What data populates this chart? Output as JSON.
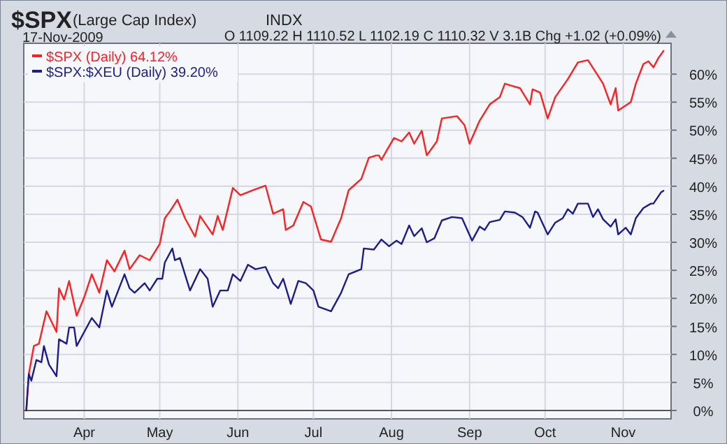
{
  "chart_data": {
    "type": "line",
    "title": "$SPX",
    "subtitle": "17-Nov-2009",
    "annotations": [
      "(Large Cap Index)",
      "INDX",
      "O 1109.22  H 1110.52  L 1102.19  C 1110.32  V 3.1B  Chg +1.02 (+0.09%)"
    ],
    "xlim": [
      "2009-03-08",
      "2009-11-20"
    ],
    "xticks": [
      {
        "value": "2009-04-01",
        "label": "Apr"
      },
      {
        "value": "2009-05-01",
        "label": "May"
      },
      {
        "value": "2009-06-01",
        "label": "Jun"
      },
      {
        "value": "2009-07-01",
        "label": "Jul"
      },
      {
        "value": "2009-08-01",
        "label": "Aug"
      },
      {
        "value": "2009-09-01",
        "label": "Sep"
      },
      {
        "value": "2009-10-01",
        "label": "Oct"
      },
      {
        "value": "2009-11-01",
        "label": "Nov"
      }
    ],
    "ylim": [
      -1.5,
      65.5
    ],
    "yticks": [
      {
        "value": 0,
        "label": "0%"
      },
      {
        "value": 5,
        "label": "5%"
      },
      {
        "value": 10,
        "label": "10%"
      },
      {
        "value": 15,
        "label": "15%"
      },
      {
        "value": 20,
        "label": "20%"
      },
      {
        "value": 25,
        "label": "25%"
      },
      {
        "value": 30,
        "label": "30%"
      },
      {
        "value": 35,
        "label": "35%"
      },
      {
        "value": 40,
        "label": "40%"
      },
      {
        "value": 45,
        "label": "45%"
      },
      {
        "value": 50,
        "label": "50%"
      },
      {
        "value": 55,
        "label": "55%"
      },
      {
        "value": 60,
        "label": "60%"
      }
    ],
    "grid": true,
    "legend": "top left",
    "marker": "none",
    "line_style": "solid",
    "ref_lines": [
      {
        "axis": "y",
        "value": 0,
        "color": "#55555f"
      }
    ],
    "series": [
      {
        "name": "$SPX (Daily) 64.12%",
        "color": "#ff2020",
        "x": [
          "2009-03-09",
          "2009-03-10",
          "2009-03-12",
          "2009-03-14",
          "2009-03-17",
          "2009-03-21",
          "2009-03-22",
          "2009-03-24",
          "2009-03-26",
          "2009-03-29",
          "2009-04-01",
          "2009-04-04",
          "2009-04-07",
          "2009-04-10",
          "2009-04-13",
          "2009-04-17",
          "2009-04-19",
          "2009-04-23",
          "2009-04-27",
          "2009-05-01",
          "2009-05-03",
          "2009-05-05",
          "2009-05-08",
          "2009-05-11",
          "2009-05-15",
          "2009-05-17",
          "2009-05-22",
          "2009-05-24",
          "2009-05-26",
          "2009-05-30",
          "2009-06-02",
          "2009-06-07",
          "2009-06-12",
          "2009-06-15",
          "2009-06-19",
          "2009-06-20",
          "2009-06-23",
          "2009-06-27",
          "2009-06-30",
          "2009-07-04",
          "2009-07-08",
          "2009-07-12",
          "2009-07-15",
          "2009-07-20",
          "2009-07-23",
          "2009-07-26",
          "2009-07-27",
          "2009-07-28",
          "2009-07-30",
          "2009-08-02",
          "2009-08-05",
          "2009-08-08",
          "2009-08-10",
          "2009-08-13",
          "2009-08-15",
          "2009-08-19",
          "2009-08-21",
          "2009-08-27",
          "2009-08-30",
          "2009-09-01",
          "2009-09-05",
          "2009-09-09",
          "2009-09-13",
          "2009-09-15",
          "2009-09-18",
          "2009-09-21",
          "2009-09-25",
          "2009-09-26",
          "2009-09-29",
          "2009-10-02",
          "2009-10-05",
          "2009-10-10",
          "2009-10-14",
          "2009-10-18",
          "2009-10-21",
          "2009-10-24",
          "2009-10-27",
          "2009-10-29",
          "2009-10-30",
          "2009-11-04",
          "2009-11-06",
          "2009-11-09",
          "2009-11-11",
          "2009-11-13",
          "2009-11-15",
          "2009-11-17"
        ],
        "values": [
          0,
          6.5,
          11.5,
          11.9,
          17.7,
          14.0,
          21.8,
          19.8,
          23.1,
          16.9,
          20.2,
          24.3,
          21.0,
          26.8,
          24.8,
          28.5,
          25.2,
          27.7,
          26.8,
          29.7,
          34.3,
          35.5,
          37.6,
          34.3,
          31.0,
          34.7,
          31.4,
          34.7,
          32.2,
          39.7,
          38.4,
          39.3,
          40.1,
          35.1,
          35.9,
          32.2,
          33.0,
          37.2,
          36.4,
          30.5,
          30.1,
          34.3,
          39.3,
          41.3,
          45.1,
          45.5,
          45.5,
          44.7,
          46.3,
          48.6,
          48.0,
          49.6,
          47.6,
          49.9,
          45.5,
          48.0,
          52.1,
          52.5,
          50.9,
          47.6,
          51.7,
          54.6,
          55.9,
          58.3,
          57.9,
          57.5,
          54.6,
          57.3,
          56.7,
          52.1,
          55.9,
          59.1,
          62.1,
          62.5,
          60.4,
          58.3,
          54.6,
          57.5,
          53.5,
          55.0,
          58.3,
          61.8,
          62.3,
          61.2,
          62.9,
          64.12
        ]
      },
      {
        "name": "$SPX:$XEU (Daily) 39.20%",
        "color": "#1c1c8c",
        "x": [
          "2009-03-09",
          "2009-03-10",
          "2009-03-11",
          "2009-03-13",
          "2009-03-15",
          "2009-03-16",
          "2009-03-18",
          "2009-03-21",
          "2009-03-22",
          "2009-03-25",
          "2009-03-26",
          "2009-03-28",
          "2009-03-29",
          "2009-04-01",
          "2009-04-04",
          "2009-04-07",
          "2009-04-10",
          "2009-04-12",
          "2009-04-17",
          "2009-04-19",
          "2009-04-21",
          "2009-04-25",
          "2009-04-27",
          "2009-04-30",
          "2009-05-02",
          "2009-05-03",
          "2009-05-06",
          "2009-05-07",
          "2009-05-09",
          "2009-05-13",
          "2009-05-17",
          "2009-05-20",
          "2009-05-22",
          "2009-05-25",
          "2009-05-28",
          "2009-05-30",
          "2009-06-02",
          "2009-06-05",
          "2009-06-08",
          "2009-06-12",
          "2009-06-15",
          "2009-06-17",
          "2009-06-19",
          "2009-06-22",
          "2009-06-25",
          "2009-06-28",
          "2009-07-01",
          "2009-07-03",
          "2009-07-08",
          "2009-07-12",
          "2009-07-15",
          "2009-07-20",
          "2009-07-21",
          "2009-07-25",
          "2009-07-28",
          "2009-07-31",
          "2009-08-03",
          "2009-08-05",
          "2009-08-08",
          "2009-08-10",
          "2009-08-13",
          "2009-08-15",
          "2009-08-18",
          "2009-08-21",
          "2009-08-25",
          "2009-08-29",
          "2009-09-02",
          "2009-09-05",
          "2009-09-07",
          "2009-09-09",
          "2009-09-13",
          "2009-09-15",
          "2009-09-19",
          "2009-09-22",
          "2009-09-25",
          "2009-09-27",
          "2009-09-28",
          "2009-10-02",
          "2009-10-05",
          "2009-10-08",
          "2009-10-10",
          "2009-10-12",
          "2009-10-14",
          "2009-10-18",
          "2009-10-20",
          "2009-10-22",
          "2009-10-24",
          "2009-10-27",
          "2009-10-29",
          "2009-10-30",
          "2009-11-02",
          "2009-11-04",
          "2009-11-06",
          "2009-11-09",
          "2009-11-12",
          "2009-11-13",
          "2009-11-16",
          "2009-11-17"
        ],
        "values": [
          0,
          6.5,
          5.3,
          9.0,
          8.6,
          11.5,
          8.2,
          6.1,
          12.7,
          11.9,
          14.8,
          14.8,
          11.5,
          14.0,
          16.5,
          14.8,
          21.4,
          18.5,
          24.3,
          21.8,
          21.0,
          22.7,
          21.4,
          23.5,
          23.5,
          26.4,
          28.9,
          26.8,
          27.2,
          21.4,
          25.2,
          23.5,
          18.5,
          21.4,
          21.4,
          24.3,
          23.1,
          26.0,
          25.2,
          25.6,
          22.7,
          21.8,
          23.5,
          19.0,
          23.1,
          22.7,
          21.4,
          18.5,
          17.7,
          21.0,
          24.3,
          25.2,
          28.9,
          28.7,
          30.5,
          29.3,
          30.3,
          29.7,
          33.0,
          31.1,
          32.5,
          30.0,
          30.7,
          33.9,
          34.5,
          34.3,
          30.3,
          32.8,
          32.2,
          33.6,
          34.0,
          35.5,
          35.3,
          34.5,
          32.6,
          35.5,
          35.3,
          31.4,
          33.5,
          34.3,
          35.9,
          35.1,
          36.9,
          36.9,
          34.5,
          35.9,
          34.1,
          32.8,
          34.1,
          31.4,
          32.6,
          31.4,
          34.3,
          36.1,
          36.9,
          36.9,
          38.9,
          39.2
        ]
      }
    ]
  }
}
